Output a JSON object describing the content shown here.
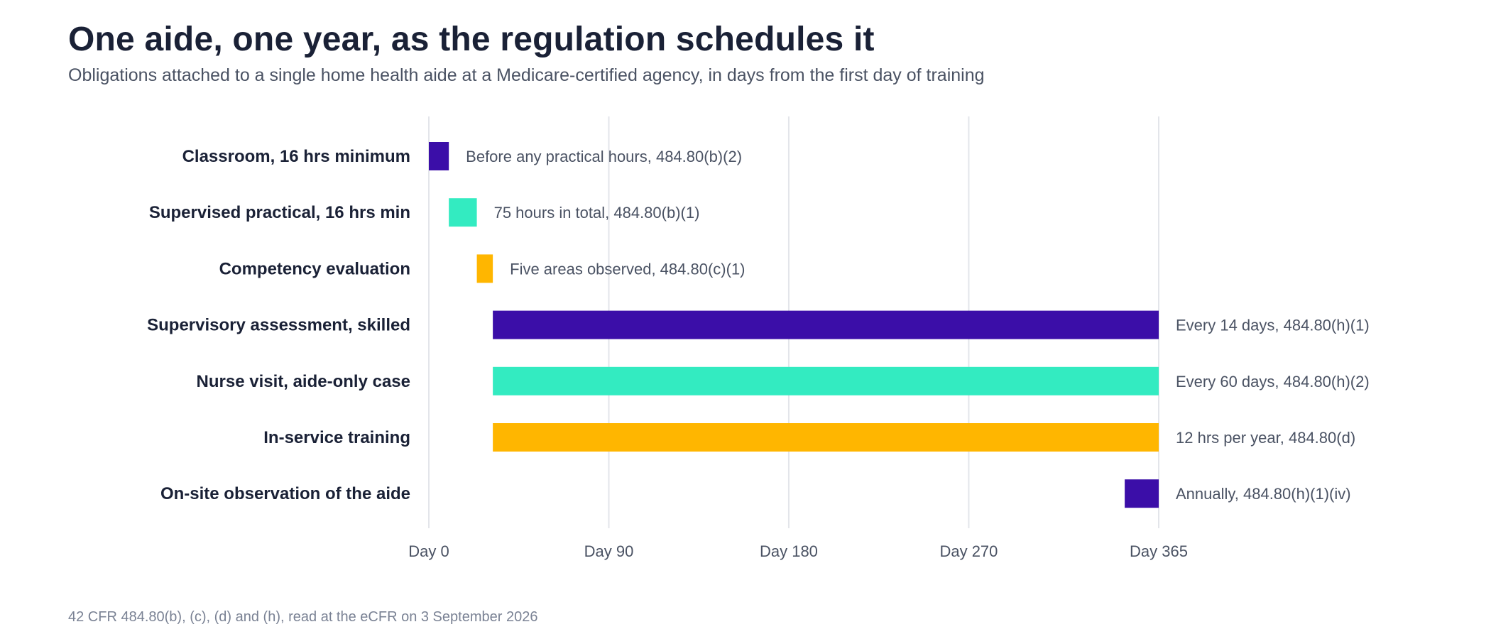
{
  "chart_data": {
    "type": "bar",
    "orientation": "horizontal-range",
    "title": "One aide, one year, as the regulation schedules it",
    "subtitle": "Obligations attached to a single home health aide at a Medicare-certified agency, in days from the first day of training",
    "source": "42 CFR 484.80(b), (c), (d) and (h), read at the eCFR on 3 September 2026",
    "xlim": [
      0,
      365
    ],
    "x_ticks": [
      {
        "value": 0,
        "label": "Day 0"
      },
      {
        "value": 90,
        "label": "Day 90"
      },
      {
        "value": 180,
        "label": "Day 180"
      },
      {
        "value": 270,
        "label": "Day 270"
      },
      {
        "value": 365,
        "label": "Day 365"
      }
    ],
    "grid": true,
    "items": [
      {
        "category": "Classroom, 16 hrs minimum",
        "start": 0,
        "end": 10,
        "label": "Before any practical hours, 484.80(b)(2)",
        "color": "#3b0ea8"
      },
      {
        "category": "Supervised practical, 16 hrs min",
        "start": 10,
        "end": 24,
        "label": "75 hours in total, 484.80(b)(1)",
        "color": "#33ebc1"
      },
      {
        "category": "Competency evaluation",
        "start": 24,
        "end": 32,
        "label": "Five areas observed, 484.80(c)(1)",
        "color": "#ffb600"
      },
      {
        "category": "Supervisory assessment, skilled",
        "start": 32,
        "end": 365,
        "label": "Every 14 days, 484.80(h)(1)",
        "color": "#3b0ea8"
      },
      {
        "category": "Nurse visit, aide-only case",
        "start": 32,
        "end": 365,
        "label": "Every 60 days, 484.80(h)(2)",
        "color": "#33ebc1"
      },
      {
        "category": "In-service training",
        "start": 32,
        "end": 365,
        "label": "12 hrs per year, 484.80(d)",
        "color": "#ffb600"
      },
      {
        "category": "On-site observation of the aide",
        "start": 348,
        "end": 365,
        "label": "Annually, 484.80(h)(1)(iv)",
        "color": "#3b0ea8"
      }
    ]
  }
}
